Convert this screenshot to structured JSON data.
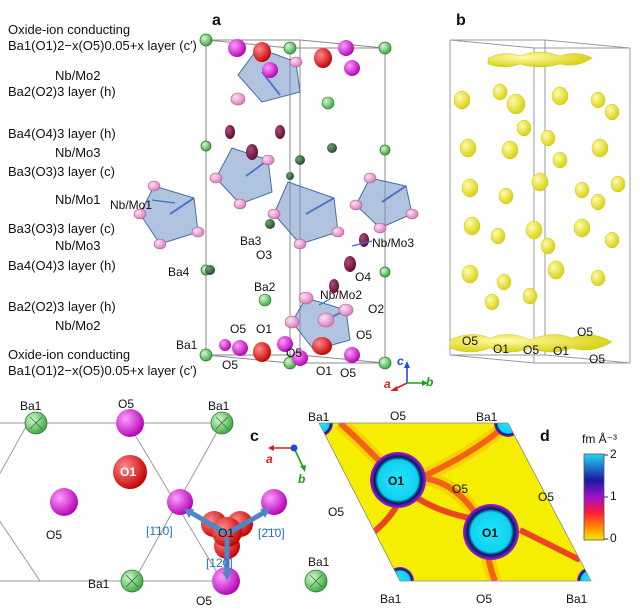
{
  "panels": {
    "a": "a",
    "b": "b",
    "c": "c",
    "d": "d"
  },
  "layers": [
    "Oxide-ion conducting",
    "Ba1(O1)2−x(O5)0.05+x layer (c′)",
    "Nb/Mo2",
    "Ba2(O2)3 layer (h)",
    "Ba4(O4)3 layer (h)",
    "Nb/Mo3",
    "Ba3(O3)3 layer (c)",
    "Nb/Mo1",
    "Ba3(O3)3 layer (c)",
    "Nb/Mo3",
    "Ba4(O4)3 layer (h)",
    "Ba2(O2)3 layer (h)",
    "Nb/Mo2",
    "Oxide-ion conducting",
    "Ba1(O1)2−x(O5)0.05+x layer (c′)"
  ],
  "panel_a_labels": {
    "nbmo1": "Nb/Mo1",
    "ba3": "Ba3",
    "o3": "O3",
    "nbmo3": "Nb/Mo3",
    "ba4": "Ba4",
    "o4": "O4",
    "ba2": "Ba2",
    "nbmo2": "Nb/Mo2",
    "o2": "O2",
    "ba1": "Ba1",
    "o5a": "O5",
    "o1a": "O1",
    "o5b": "O5",
    "o5c": "O5",
    "o5d": "O5",
    "o1b": "O1",
    "o5e": "O5"
  },
  "axes_a": {
    "a": "a",
    "b": "b",
    "c": "c"
  },
  "panel_b_labels": {
    "o5a": "O5",
    "o1a": "O1",
    "o5b": "O5",
    "o1b": "O1",
    "o5c": "O5",
    "o5d": "O5"
  },
  "panel_c_labels": {
    "ba1_tl": "Ba1",
    "o5_t": "O5",
    "ba1_tr": "Ba1",
    "o1_top": "O1",
    "o5_l": "O5",
    "o1_c": "O1",
    "ba1_bl": "Ba1",
    "ba1_br": "Ba1",
    "o5_b": "O5"
  },
  "directions": {
    "d1": "[1̄10]",
    "d2": "[2̄1̄0]",
    "d3": "[120]"
  },
  "axes_c": {
    "a": "a",
    "b": "b"
  },
  "panel_d_labels": {
    "ba1_tl": "Ba1",
    "o5_t": "O5",
    "ba1_tr": "Ba1",
    "o1_a": "O1",
    "o5_m": "O5",
    "o5_r": "O5",
    "o5_l": "O5",
    "o1_b": "O1",
    "ba1_bl": "Ba1",
    "o5_b": "O5",
    "ba1_br": "Ba1"
  },
  "colorbar": {
    "unit": "fm Å⁻³",
    "ticks": [
      "2",
      "1",
      "0"
    ]
  },
  "colors": {
    "ba": "#5cc35c",
    "o1": "#dd2222",
    "o5": "#d61fd6",
    "nbmo": "#3a7bd5",
    "iso": "#f3f000"
  }
}
